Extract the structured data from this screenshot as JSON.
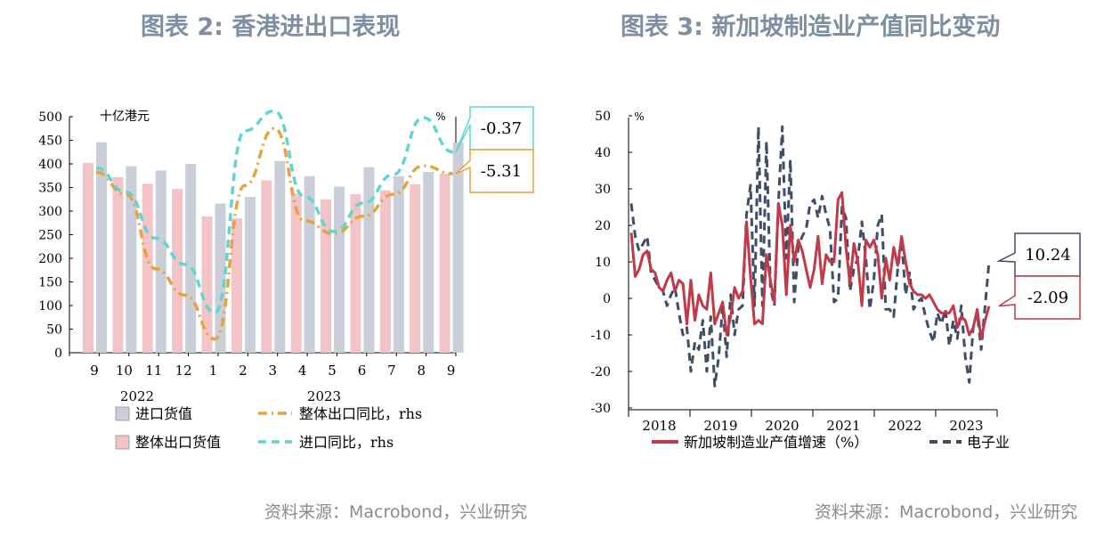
{
  "left": {
    "title": "图表 2:    香港进出口表现",
    "source": "资料来源：Macrobond，兴业研究",
    "chart_data": {
      "type": "bar",
      "categories": [
        "9",
        "10",
        "11",
        "12",
        "1",
        "2",
        "3",
        "4",
        "5",
        "6",
        "7",
        "8",
        "9"
      ],
      "year_labels": [
        "2022",
        "2023"
      ],
      "y_left": {
        "unit_label": "十亿港元",
        "ylim": [
          0,
          500
        ],
        "ticks": [
          0,
          50,
          100,
          150,
          200,
          250,
          300,
          350,
          400,
          450,
          500
        ]
      },
      "y_right": {
        "unit_label": "%"
      },
      "series": [
        {
          "name": "整体出口货值",
          "kind": "bar",
          "axis": "left",
          "color": "#f2c4c8",
          "values": [
            402,
            372,
            358,
            347,
            289,
            285,
            365,
            337,
            325,
            336,
            344,
            357,
            379
          ]
        },
        {
          "name": "进口货值",
          "kind": "bar",
          "axis": "left",
          "color": "#c9ced8",
          "values": [
            446,
            395,
            386,
            400,
            316,
            330,
            406,
            374,
            352,
            393,
            374,
            383,
            445
          ]
        },
        {
          "name": "整体出口同比，rhs",
          "kind": "line",
          "axis": "right",
          "color": "#e8a33c",
          "dash": "dash-dot",
          "values": [
            -5,
            -10,
            -27,
            -33,
            -43,
            -8,
            5,
            -16,
            -19,
            -15,
            -10,
            -3.5,
            -5.31
          ]
        },
        {
          "name": "进口同比，rhs",
          "kind": "line",
          "axis": "right",
          "color": "#5fd6d2",
          "dash": "dash",
          "values": [
            -4,
            -9.5,
            -20,
            -26,
            -37,
            4.5,
            9,
            -10.5,
            -18.5,
            -12,
            -5.5,
            7.5,
            -0.37
          ]
        }
      ],
      "callouts": [
        "-0.37",
        "-5.31"
      ],
      "legend": [
        {
          "label": "进口货值",
          "type": "box",
          "color": "#c9ced8"
        },
        {
          "label": "整体出口同比，rhs",
          "type": "dashdot",
          "color": "#e8a33c"
        },
        {
          "label": "整体出口货值",
          "type": "box",
          "color": "#f2c4c8"
        },
        {
          "label": "进口同比，rhs",
          "type": "dash",
          "color": "#5fd6d2"
        }
      ]
    }
  },
  "right": {
    "title": "图表 3:     新加坡制造业产值同比变动",
    "source": "资料来源：Macrobond，兴业研究",
    "chart_data": {
      "type": "line",
      "x_labels": [
        "2018",
        "2019",
        "2020",
        "2021",
        "2022",
        "2023"
      ],
      "y": {
        "unit_label": "%",
        "ylim": [
          -30,
          50
        ],
        "ticks": [
          -30,
          -20,
          -10,
          0,
          10,
          20,
          30,
          40,
          50
        ]
      },
      "series": [
        {
          "name": "新加坡制造业产值增速（%）",
          "color": "#c23a4a",
          "dash": "solid",
          "values": [
            18,
            6,
            8,
            12,
            13,
            8,
            7,
            3,
            2,
            5,
            7,
            2,
            5,
            4,
            -7,
            5,
            -6,
            1,
            -2,
            -3,
            7,
            -7,
            -4,
            -1,
            -10,
            -5,
            3,
            0,
            2,
            21,
            6,
            -7,
            -6,
            -7,
            12,
            5,
            -1,
            26,
            20,
            1,
            20,
            10,
            16,
            13,
            8,
            3,
            8,
            17,
            4,
            12,
            10,
            10,
            27,
            29,
            14,
            4,
            15,
            10,
            -2,
            16,
            14,
            16,
            12,
            0,
            11,
            5,
            14,
            9,
            17,
            10,
            4,
            2,
            1,
            1,
            0,
            1,
            -1,
            -3,
            -4,
            -4,
            -4,
            -2,
            -8,
            -5,
            -6,
            -10,
            -8,
            -3,
            -11,
            -6,
            -2.09
          ]
        },
        {
          "name": "电子业",
          "color": "#3f4d66",
          "dash": "dash",
          "values": [
            26,
            17,
            13,
            15,
            17,
            7,
            5,
            3,
            2,
            -2,
            1,
            3,
            -4,
            -10,
            -8,
            -20,
            -12,
            -14,
            -6,
            -20,
            -5,
            -24,
            -16,
            -2,
            -16,
            1,
            -10,
            -3,
            -2,
            23,
            31,
            -2,
            47,
            -2,
            43,
            3,
            -2,
            26,
            47,
            11,
            38,
            -1,
            14,
            17,
            19,
            26,
            27,
            22,
            28,
            23,
            19,
            -1,
            0,
            25,
            22,
            2,
            8,
            11,
            21,
            11,
            -3,
            5,
            20,
            23,
            -3,
            -3,
            -5,
            8,
            16,
            1,
            7,
            -3,
            -1,
            0,
            -5,
            -9,
            -12,
            -4,
            -7,
            -3,
            -13,
            -6,
            -11,
            -2,
            -16,
            -23,
            -8,
            -4,
            -14,
            -2,
            10.24
          ]
        }
      ],
      "callouts": [
        "10.24",
        "-2.09"
      ],
      "legend": [
        {
          "label": "新加坡制造业产值增速（%）",
          "type": "solid",
          "color": "#c23a4a"
        },
        {
          "label": "电子业",
          "type": "dash",
          "color": "#3f4d66"
        }
      ]
    }
  }
}
